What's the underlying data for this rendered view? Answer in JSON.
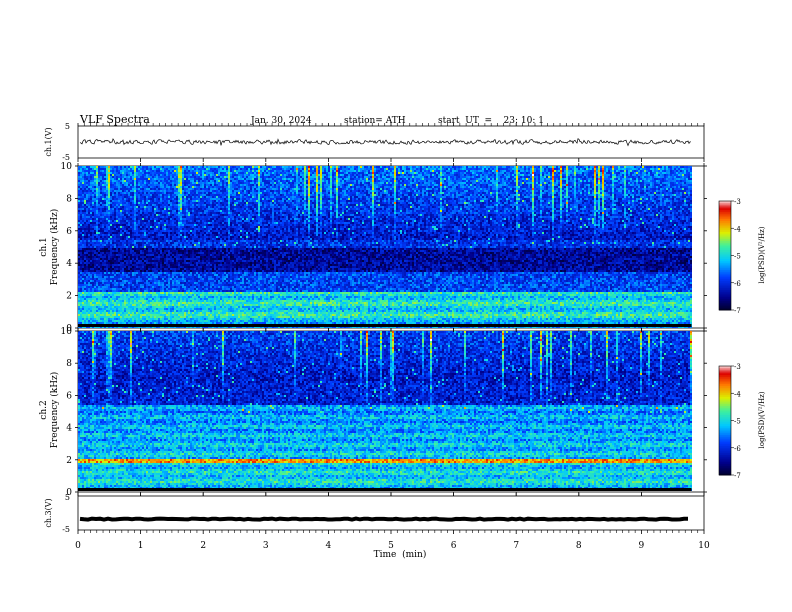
{
  "header": {
    "title": "VLF  Spectra",
    "date": "Jan. 30, 2024",
    "station": "station= ATH",
    "start_ut": "start  UT  =    23: 10: 1"
  },
  "chart_data": [
    {
      "type": "line",
      "panel": "ch1_waveform",
      "ylabel": "ch.1(V)",
      "ylim": [
        -5,
        5
      ],
      "y_ticks": [
        "5",
        "-5"
      ],
      "x_range_min": [
        0,
        9.8
      ],
      "baseline_v": 0.0,
      "noise_amplitude_v": 0.9
    },
    {
      "type": "heatmap",
      "panel": "ch1_spectrogram",
      "ylabel_channel": "ch.1",
      "ylabel": "Frequency  (kHz)",
      "ylim": [
        0,
        10
      ],
      "y_ticks": [
        "0",
        "2",
        "4",
        "6",
        "8",
        "10"
      ],
      "x_range_min": [
        0,
        9.8
      ],
      "colorbar": {
        "label": "log(PSD)(V²/Hz)",
        "range": [
          -7,
          -3
        ],
        "ticks": [
          "-3",
          "-4",
          "-5",
          "-6",
          "-7"
        ]
      },
      "features": {
        "strong_low_freq_band_khz": [
          0,
          2.3
        ],
        "dark_band_khz": [
          3.5,
          5.0
        ],
        "sferic_activity_khz": [
          5.5,
          10
        ]
      }
    },
    {
      "type": "heatmap",
      "panel": "ch2_spectrogram",
      "ylabel_channel": "ch.2",
      "ylabel": "Frequency  (kHz)",
      "ylim": [
        0,
        10
      ],
      "y_ticks": [
        "0",
        "2",
        "4",
        "6",
        "8",
        "10"
      ],
      "x_range_min": [
        0,
        9.8
      ],
      "colorbar": {
        "label": "log(PSD)(V²/Hz)",
        "range": [
          -7,
          -3
        ],
        "ticks": [
          "-3",
          "-4",
          "-5",
          "-6",
          "-7"
        ]
      },
      "features": {
        "strong_line_khz": 2.0,
        "active_band_khz": [
          0,
          5.5
        ],
        "sferic_activity_khz": [
          5.5,
          10
        ]
      }
    },
    {
      "type": "line",
      "panel": "ch3_waveform",
      "ylabel": "ch.3(V)",
      "ylim": [
        -5,
        5
      ],
      "y_ticks": [
        "5",
        "-5"
      ],
      "x_range_min": [
        0,
        9.8
      ],
      "baseline_v": -1.8,
      "noise_amplitude_v": 0.15
    }
  ],
  "x_axis": {
    "label": "Time  (min)",
    "ticks": [
      "0",
      "1",
      "2",
      "3",
      "4",
      "5",
      "6",
      "7",
      "8",
      "9",
      "10"
    ],
    "range": [
      0,
      10
    ]
  }
}
